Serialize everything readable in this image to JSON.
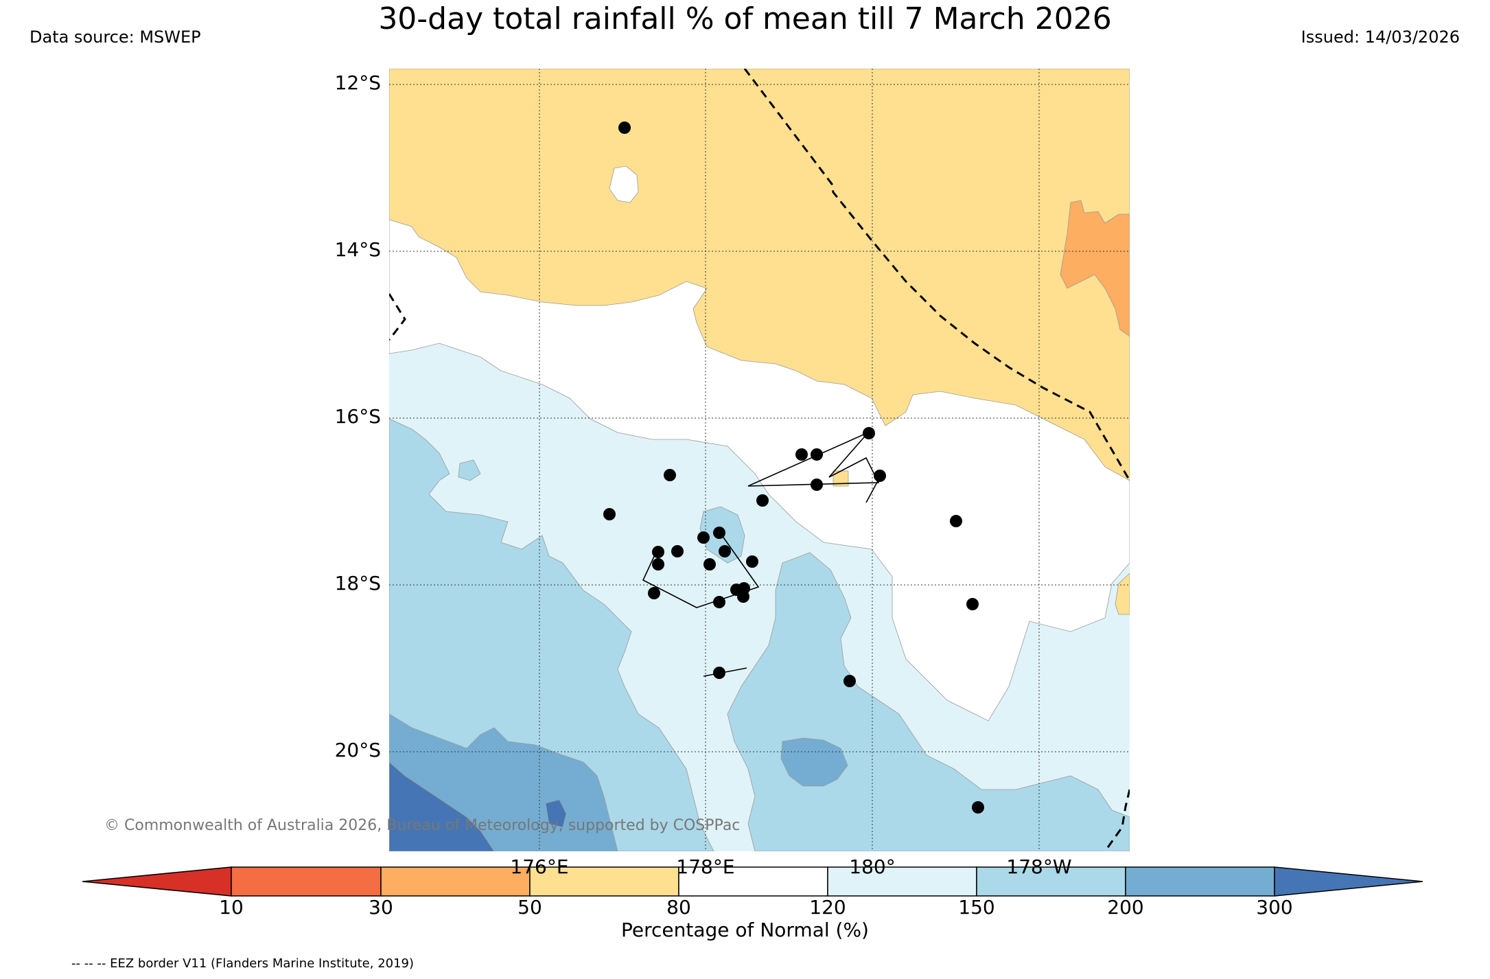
{
  "header": {
    "title": "30-day total rainfall % of mean till 7 March 2026",
    "data_source": "Data source: MSWEP",
    "issued": "Issued: 14/03/2026"
  },
  "map": {
    "lat_labels": [
      "12°S",
      "14°S",
      "16°S",
      "18°S",
      "20°S"
    ],
    "lon_labels": [
      "176°E",
      "178°E",
      "180°",
      "178°W"
    ],
    "copyright": "© Commonwealth of Australia 2026, Bureau of Meteorology, supported by COSPPac",
    "colors": {
      "c10_30": "#f46d43",
      "c30_50": "#fdae61",
      "c50_80": "#fee090",
      "c80_120": "#ffffff",
      "c120_150": "#e0f3f8",
      "c150_200": "#abd9e9",
      "c200_300": "#74add1",
      "c300_plus": "#4575b4",
      "below_10": "#d73027"
    }
  },
  "colorbar": {
    "ticks": [
      "10",
      "30",
      "50",
      "80",
      "120",
      "150",
      "200",
      "300"
    ],
    "label": "Percentage of Normal (%)"
  },
  "legend": {
    "eez_note": "-- -- -- EEZ border V11 (Flanders Marine Institute, 2019)"
  }
}
